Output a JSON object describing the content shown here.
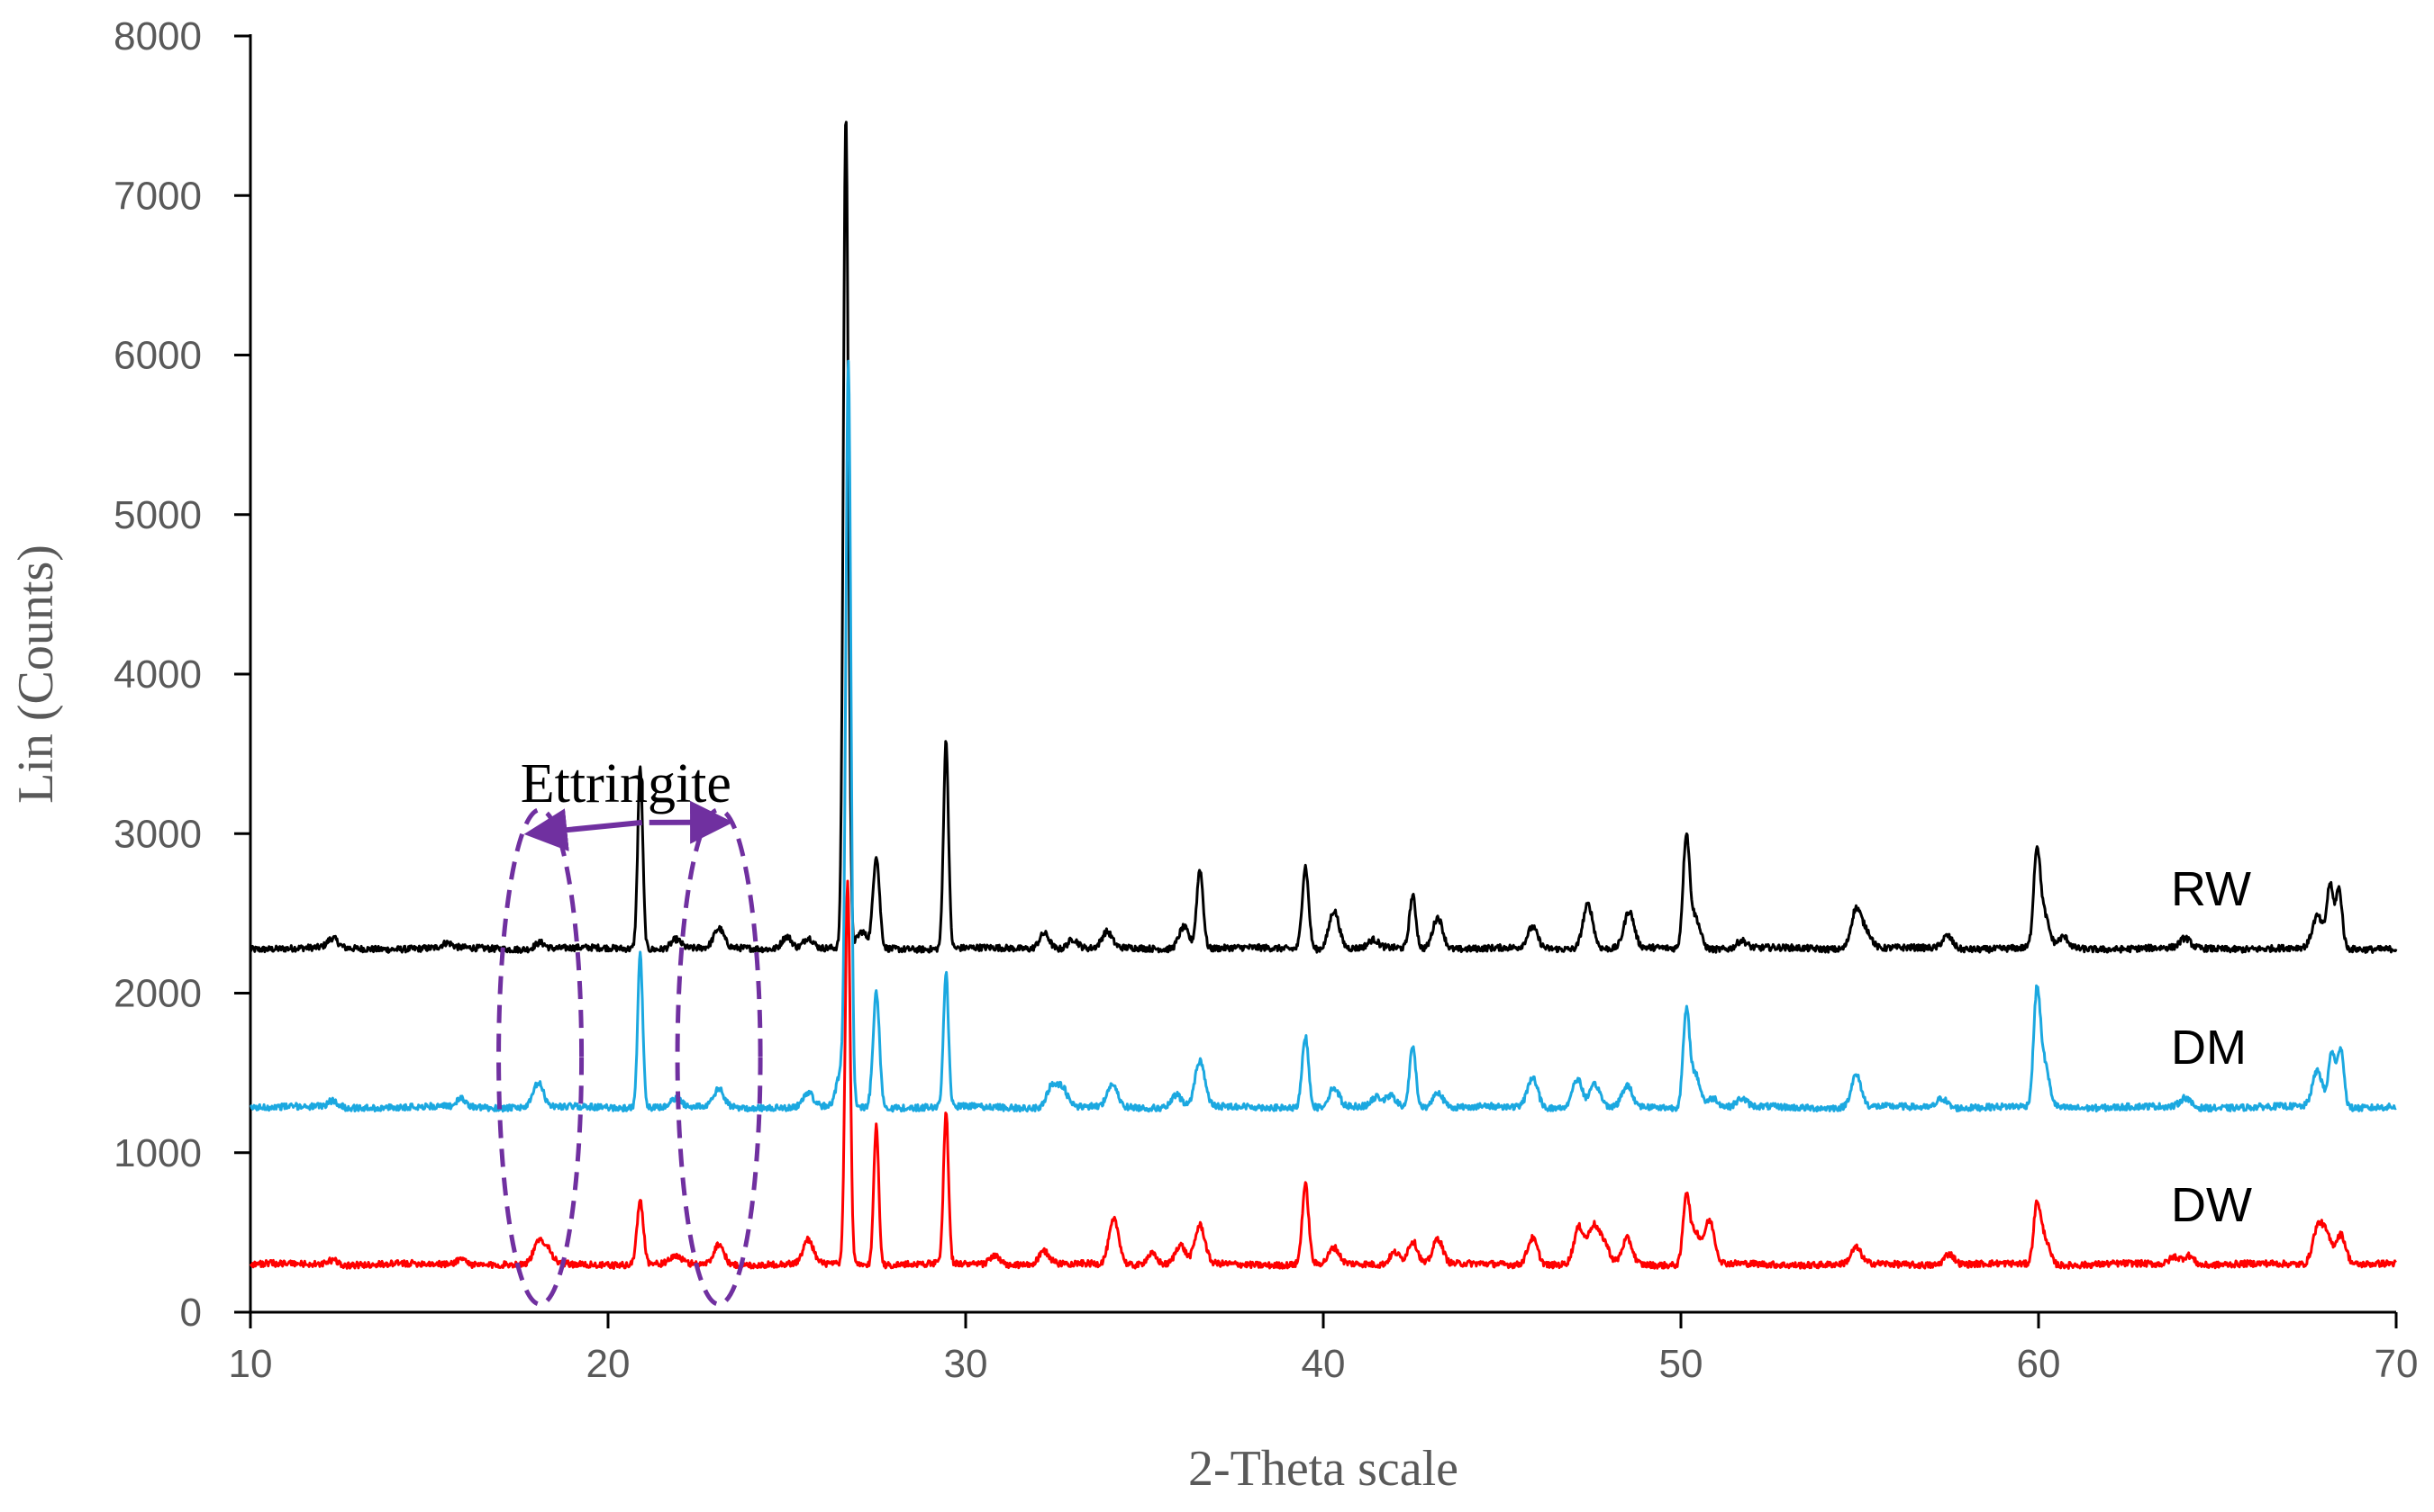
{
  "chart_data": {
    "type": "line",
    "title": "",
    "xlabel": "2-Theta scale",
    "ylabel": "Lin (Counts)",
    "xlim": [
      10,
      70
    ],
    "ylim": [
      0,
      8000
    ],
    "xticks": [
      10,
      20,
      30,
      40,
      50,
      60,
      70
    ],
    "yticks": [
      0,
      1000,
      2000,
      3000,
      4000,
      5000,
      6000,
      7000,
      8000
    ],
    "xtick_labels": [
      "10",
      "20",
      "30",
      "40",
      "50",
      "60",
      "70"
    ],
    "ytick_labels": [
      "0",
      "1000",
      "2000",
      "3000",
      "4000",
      "5000",
      "6000",
      "7000",
      "8000"
    ],
    "grid": false,
    "legend": "inline-right",
    "series": [
      {
        "name": "RW",
        "color": "#000000",
        "baseline": 2280,
        "peaks": [
          [
            12.3,
            60
          ],
          [
            15.5,
            30
          ],
          [
            18.1,
            40
          ],
          [
            20.9,
            1140
          ],
          [
            21.9,
            60
          ],
          [
            23.1,
            120
          ],
          [
            25.0,
            80
          ],
          [
            25.6,
            70
          ],
          [
            26.65,
            5220
          ],
          [
            27.1,
            100
          ],
          [
            27.5,
            580
          ],
          [
            29.45,
            1300
          ],
          [
            32.2,
            100
          ],
          [
            33.0,
            60
          ],
          [
            33.95,
            100
          ],
          [
            36.1,
            140
          ],
          [
            36.55,
            500
          ],
          [
            39.5,
            520
          ],
          [
            40.3,
            240
          ],
          [
            41.4,
            50
          ],
          [
            42.5,
            330
          ],
          [
            43.2,
            200
          ],
          [
            45.85,
            130
          ],
          [
            47.4,
            280
          ],
          [
            48.55,
            230
          ],
          [
            50.15,
            690
          ],
          [
            50.4,
            200
          ],
          [
            51.7,
            50
          ],
          [
            54.9,
            250
          ],
          [
            55.2,
            100
          ],
          [
            57.45,
            80
          ],
          [
            59.95,
            560
          ],
          [
            60.15,
            210
          ],
          [
            60.7,
            70
          ],
          [
            64.1,
            60
          ],
          [
            67.8,
            200
          ],
          [
            68.15,
            390
          ],
          [
            68.4,
            370
          ]
        ]
      },
      {
        "name": "DM",
        "color": "#1ba8e0",
        "baseline": 1285,
        "peaks": [
          [
            12.3,
            40
          ],
          [
            15.9,
            50
          ],
          [
            18.05,
            150
          ],
          [
            20.9,
            960
          ],
          [
            21.9,
            50
          ],
          [
            23.1,
            110
          ],
          [
            25.6,
            90
          ],
          [
            26.55,
            250
          ],
          [
            26.72,
            4560
          ],
          [
            27.5,
            720
          ],
          [
            29.45,
            840
          ],
          [
            32.4,
            130
          ],
          [
            32.7,
            120
          ],
          [
            34.1,
            140
          ],
          [
            35.9,
            80
          ],
          [
            36.55,
            290
          ],
          [
            39.5,
            450
          ],
          [
            40.3,
            120
          ],
          [
            41.5,
            60
          ],
          [
            41.9,
            70
          ],
          [
            42.5,
            380
          ],
          [
            43.2,
            100
          ],
          [
            45.85,
            190
          ],
          [
            47.1,
            180
          ],
          [
            47.6,
            140
          ],
          [
            48.5,
            130
          ],
          [
            50.15,
            580
          ],
          [
            50.4,
            210
          ],
          [
            50.9,
            60
          ],
          [
            51.7,
            50
          ],
          [
            54.9,
            200
          ],
          [
            57.3,
            60
          ],
          [
            59.95,
            650
          ],
          [
            60.15,
            280
          ],
          [
            64.1,
            60
          ],
          [
            67.8,
            230
          ],
          [
            68.2,
            350
          ],
          [
            68.45,
            380
          ]
        ]
      },
      {
        "name": "DW",
        "color": "#ff0000",
        "baseline": 300,
        "peaks": [
          [
            12.3,
            30
          ],
          [
            15.9,
            40
          ],
          [
            18.05,
            120
          ],
          [
            18.3,
            90
          ],
          [
            20.9,
            400
          ],
          [
            21.9,
            50
          ],
          [
            23.1,
            130
          ],
          [
            25.6,
            150
          ],
          [
            26.7,
            2400
          ],
          [
            27.5,
            880
          ],
          [
            29.45,
            950
          ],
          [
            30.8,
            60
          ],
          [
            32.2,
            80
          ],
          [
            34.15,
            280
          ],
          [
            35.2,
            70
          ],
          [
            36.0,
            120
          ],
          [
            36.55,
            240
          ],
          [
            39.5,
            500
          ],
          [
            40.3,
            100
          ],
          [
            42.0,
            80
          ],
          [
            42.5,
            150
          ],
          [
            43.2,
            160
          ],
          [
            45.85,
            170
          ],
          [
            47.15,
            230
          ],
          [
            47.55,
            230
          ],
          [
            47.85,
            130
          ],
          [
            48.5,
            160
          ],
          [
            50.15,
            420
          ],
          [
            50.4,
            200
          ],
          [
            50.8,
            270
          ],
          [
            54.9,
            100
          ],
          [
            57.5,
            70
          ],
          [
            59.95,
            330
          ],
          [
            60.15,
            180
          ],
          [
            63.8,
            50
          ],
          [
            64.2,
            60
          ],
          [
            67.8,
            220
          ],
          [
            68.05,
            170
          ],
          [
            68.45,
            190
          ]
        ]
      }
    ],
    "annotations": [
      {
        "id": "ettringite",
        "text": "Ettringite",
        "targets_2theta": [
          18.1,
          23.1
        ]
      }
    ]
  }
}
